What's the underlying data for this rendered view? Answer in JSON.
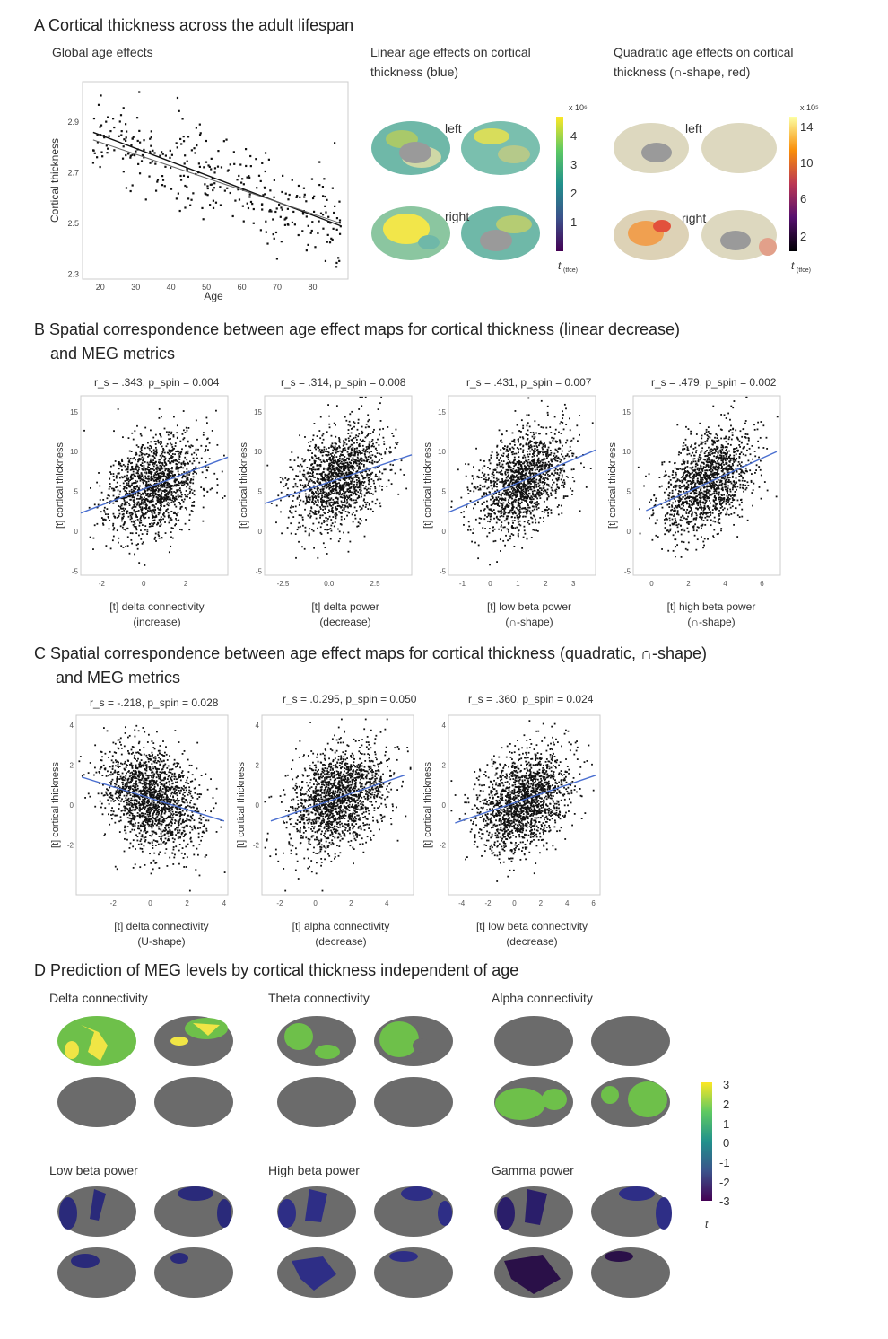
{
  "panelA": {
    "heading": "A  Cortical thickness across the adult lifespan",
    "sub1": "Global age effects",
    "sub2a": "Linear age effects on cortical",
    "sub2b": "thickness (blue)",
    "sub3a": "Quadratic age effects on cortical",
    "sub3b": "thickness (∩-shape, red)",
    "left_label": "left",
    "right_label": "right",
    "cb1_exp": "x 10⁶",
    "cb1_ticks": [
      "4",
      "3",
      "2",
      "1"
    ],
    "cb2_exp": "x 10⁵",
    "cb2_ticks": [
      "14",
      "10",
      "6",
      "2"
    ],
    "cb_label": "t",
    "cb_label_sub": "(tfce)",
    "colors": {
      "viridis": [
        "#440154",
        "#3b528b",
        "#21918c",
        "#5ec962",
        "#fde725"
      ],
      "inferno": [
        "#000004",
        "#56106e",
        "#bb3754",
        "#f98e09",
        "#fcffa4"
      ]
    }
  },
  "panelB": {
    "heading1": "B  Spatial correspondence between age effect maps for cortical thickness (linear decrease)",
    "heading2": "and MEG metrics"
  },
  "panelC": {
    "heading1": "C  Spatial correspondence between age effect maps for cortical thickness (quadratic, ∩-shape)",
    "heading2": "and MEG metrics"
  },
  "panelD": {
    "heading": "D  Prediction of MEG levels by cortical thickness independent of age",
    "labels": [
      "Delta connectivity",
      "Theta connectivity",
      "Alpha connectivity",
      "Low beta power",
      "High beta power",
      "Gamma power"
    ],
    "cb_ticks": [
      "3",
      "2",
      "1",
      "0",
      "-1",
      "-2",
      "-3"
    ],
    "cb_label": "t"
  },
  "chart_data": [
    {
      "type": "scatter",
      "title": "Global age effects",
      "xlabel": "Age",
      "ylabel": "Cortical thickness",
      "xlim": [
        15,
        90
      ],
      "ylim": [
        2.28,
        3.06
      ],
      "xticks": [
        20,
        30,
        40,
        50,
        60,
        70,
        80
      ],
      "yticks": [
        2.3,
        2.5,
        2.7,
        2.9
      ],
      "fit": [
        [
          18,
          2.86
        ],
        [
          88,
          2.49
        ]
      ],
      "fit2": [
        [
          18,
          2.83
        ],
        [
          88,
          2.5
        ]
      ]
    },
    {
      "type": "scatter",
      "stat": "r_s = .343, p_spin = 0.004",
      "xlabel": "[t] delta connectivity",
      "xlabel2": "(increase)",
      "ylabel": "[t] cortical thickness",
      "xlim": [
        -3,
        4
      ],
      "ylim": [
        -5.5,
        17
      ],
      "xticks": [
        -2,
        0,
        2
      ],
      "xticklabels": [
        "-2",
        "0",
        "2"
      ],
      "yticks": [
        -5,
        0,
        5,
        10,
        15
      ],
      "yticklabels": [
        "-5",
        "0",
        "5",
        "10",
        "15"
      ],
      "fit": [
        [
          -3,
          2.3
        ],
        [
          4,
          9.3
        ]
      ]
    },
    {
      "type": "scatter",
      "stat": "r_s = .314, p_spin = 0.008",
      "xlabel": "[t] delta power",
      "xlabel2": "(decrease)",
      "ylabel": "[t] cortical thickness",
      "xlim": [
        -3.5,
        4.5
      ],
      "ylim": [
        -5.5,
        17
      ],
      "xticks": [
        -2.5,
        0,
        2.5
      ],
      "xticklabels": [
        "-2.5",
        "0.0",
        "2.5"
      ],
      "yticks": [
        -5,
        0,
        5,
        10,
        15
      ],
      "yticklabels": [
        "-5",
        "0",
        "5",
        "10",
        "15"
      ],
      "fit": [
        [
          -3.5,
          3.5
        ],
        [
          4.5,
          9.6
        ]
      ]
    },
    {
      "type": "scatter",
      "stat": "r_s = .431, p_spin = 0.007",
      "xlabel": "[t] low beta power",
      "xlabel2": "(∩-shape)",
      "ylabel": "[t] cortical thickness",
      "xlim": [
        -1.5,
        3.8
      ],
      "ylim": [
        -5.5,
        17
      ],
      "xticks": [
        -1,
        0,
        1,
        2,
        3
      ],
      "xticklabels": [
        "-1",
        "0",
        "1",
        "2",
        "3"
      ],
      "yticks": [
        -5,
        0,
        5,
        10,
        15
      ],
      "yticklabels": [
        "-5",
        "0",
        "5",
        "10",
        "15"
      ],
      "fit": [
        [
          -1.5,
          2.4
        ],
        [
          3.8,
          10.2
        ]
      ]
    },
    {
      "type": "scatter",
      "stat": "r_s = .479, p_spin = 0.002",
      "xlabel": "[t] high beta power",
      "xlabel2": "(∩-shape)",
      "ylabel": "[t] cortical thickness",
      "xlim": [
        -1,
        7
      ],
      "ylim": [
        -5.5,
        17
      ],
      "xticks": [
        0,
        2,
        4,
        6
      ],
      "xticklabels": [
        "0",
        "2",
        "4",
        "6"
      ],
      "yticks": [
        -5,
        0,
        5,
        10,
        15
      ],
      "yticklabels": [
        "-5",
        "0",
        "5",
        "10",
        "15"
      ],
      "fit": [
        [
          -0.3,
          2.6
        ],
        [
          6.8,
          10.0
        ]
      ]
    },
    {
      "type": "scatter",
      "stat": "r_s = -.218, p_spin = 0.028",
      "xlabel": "[t] delta connectivity",
      "xlabel2": "(U-shape)",
      "ylabel": "[t] cortical thickness",
      "xlim": [
        -4,
        4.2
      ],
      "ylim": [
        -4.5,
        4.5
      ],
      "xticks": [
        -2,
        0,
        2,
        4
      ],
      "xticklabels": [
        "-2",
        "0",
        "2",
        "4"
      ],
      "yticks": [
        -2,
        0,
        2,
        4
      ],
      "yticklabels": [
        "-2",
        "0",
        "2",
        "4"
      ],
      "fit": [
        [
          -3.7,
          1.4
        ],
        [
          4,
          -0.8
        ]
      ]
    },
    {
      "type": "scatter",
      "stat": "r_s = .0.295, p_spin = 0.050",
      "xlabel": "[t] alpha connectivity",
      "xlabel2": "(decrease)",
      "ylabel": "[t] cortical thickness",
      "xlim": [
        -3,
        5.5
      ],
      "ylim": [
        -4.5,
        4.5
      ],
      "xticks": [
        -2,
        0,
        2,
        4
      ],
      "xticklabels": [
        "-2",
        "0",
        "2",
        "4"
      ],
      "yticks": [
        -2,
        0,
        2,
        4
      ],
      "yticklabels": [
        "-2",
        "0",
        "2",
        "4"
      ],
      "fit": [
        [
          -2.5,
          -0.8
        ],
        [
          5,
          1.5
        ]
      ]
    },
    {
      "type": "scatter",
      "stat": "r_s = .360, p_spin = 0.024",
      "xlabel": "[t] low beta connectivity",
      "xlabel2": "(decrease)",
      "ylabel": "[t] cortical thickness",
      "xlim": [
        -5,
        6.5
      ],
      "ylim": [
        -4.5,
        4.5
      ],
      "xticks": [
        -4,
        -2,
        0,
        2,
        4,
        6
      ],
      "xticklabels": [
        "-4",
        "-2",
        "0",
        "2",
        "4",
        "6"
      ],
      "yticks": [
        -2,
        0,
        2,
        4
      ],
      "yticklabels": [
        "-2",
        "0",
        "2",
        "4"
      ],
      "fit": [
        [
          -4.5,
          -0.9
        ],
        [
          6.2,
          1.5
        ]
      ]
    }
  ]
}
